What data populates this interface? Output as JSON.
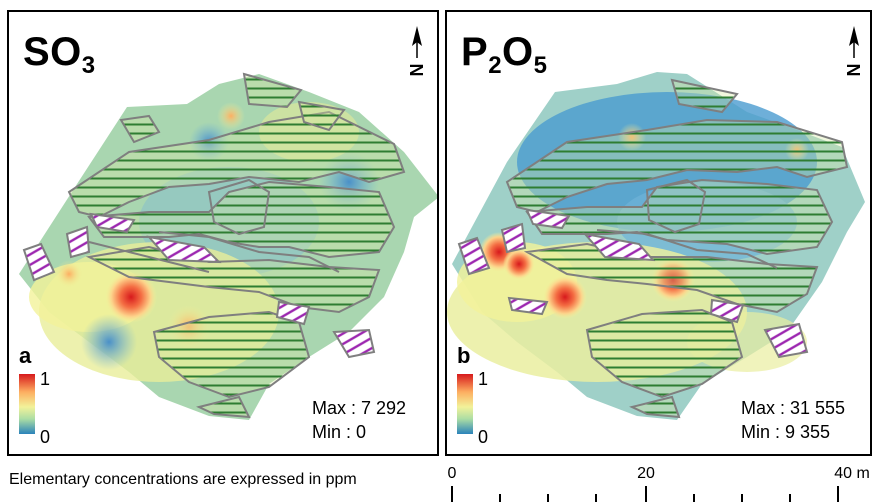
{
  "panels": [
    {
      "title_main": "SO",
      "title_sub": "3",
      "letter": "a",
      "legend_max": "1",
      "legend_min": "0",
      "max_text": "Max : 7 292",
      "min_text": "Min : 0"
    },
    {
      "title_main": "P",
      "title_sub1": "2",
      "title_mid": "O",
      "title_sub2": "5",
      "letter": "b",
      "legend_max": "1",
      "legend_min": "0",
      "max_text": "Max : 31 555",
      "min_text": "Min : 9 355"
    }
  ],
  "north_label": "N",
  "caption": "Elementary concentrations are expressed in ppm",
  "scale": {
    "labels": [
      "0",
      "20",
      "40 m"
    ]
  },
  "colors": {
    "low": "#2b83ba",
    "mid": "#f2f29a",
    "high": "#d7191c",
    "hatch_green": "#2e7d32",
    "hatch_purple": "#9c27b0",
    "outline": "#7f7f7f"
  }
}
